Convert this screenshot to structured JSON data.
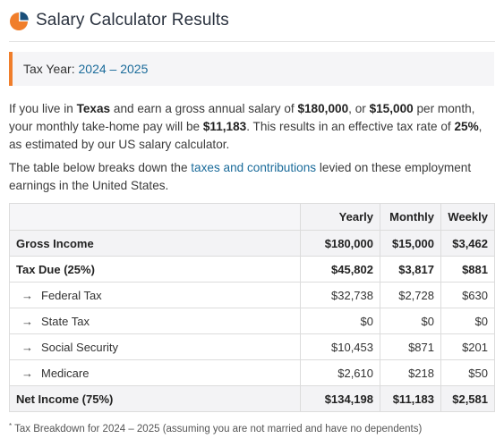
{
  "header": {
    "title": "Salary Calculator Results",
    "logo_icon": "pie-chart-icon",
    "colors": {
      "orange": "#f07e2b",
      "blue": "#1a6b9a"
    }
  },
  "tax_year": {
    "label": "Tax Year:",
    "value": "2024 – 2025"
  },
  "summary": {
    "t1": "If you live in ",
    "state": "Texas",
    "t2": " and earn a gross annual salary of ",
    "annual": "$180,000",
    "t3": ", or ",
    "monthly": "$15,000",
    "t4": " per month, your monthly take-home pay will be ",
    "takehome": "$11,183",
    "t5": ". This results in an effective tax rate of ",
    "rate": "25%",
    "t6": ", as estimated by our US salary calculator."
  },
  "breakdown_text": {
    "t1": "The table below breaks down the ",
    "link": "taxes and contributions",
    "t2": " levied on these employment earnings in the United States."
  },
  "table": {
    "headers": [
      "",
      "Yearly",
      "Monthly",
      "Weekly"
    ],
    "rows": [
      {
        "label": "Gross Income",
        "yearly": "$180,000",
        "monthly": "$15,000",
        "weekly": "$3,462"
      },
      {
        "label": "Tax Due (25%)",
        "yearly": "$45,802",
        "monthly": "$3,817",
        "weekly": "$881"
      },
      {
        "label": "Federal Tax",
        "yearly": "$32,738",
        "monthly": "$2,728",
        "weekly": "$630",
        "icon": "arrow-right-icon"
      },
      {
        "label": "State Tax",
        "yearly": "$0",
        "monthly": "$0",
        "weekly": "$0",
        "icon": "arrow-right-icon"
      },
      {
        "label": "Social Security",
        "yearly": "$10,453",
        "monthly": "$871",
        "weekly": "$201",
        "icon": "arrow-right-icon"
      },
      {
        "label": "Medicare",
        "yearly": "$2,610",
        "monthly": "$218",
        "weekly": "$50",
        "icon": "arrow-right-icon"
      },
      {
        "label": "Net Income (75%)",
        "yearly": "$134,198",
        "monthly": "$11,183",
        "weekly": "$2,581"
      }
    ]
  },
  "footnote": {
    "marker": "*",
    "text": " Tax Breakdown for 2024 – 2025 (assuming you are not married and have no dependents)"
  }
}
